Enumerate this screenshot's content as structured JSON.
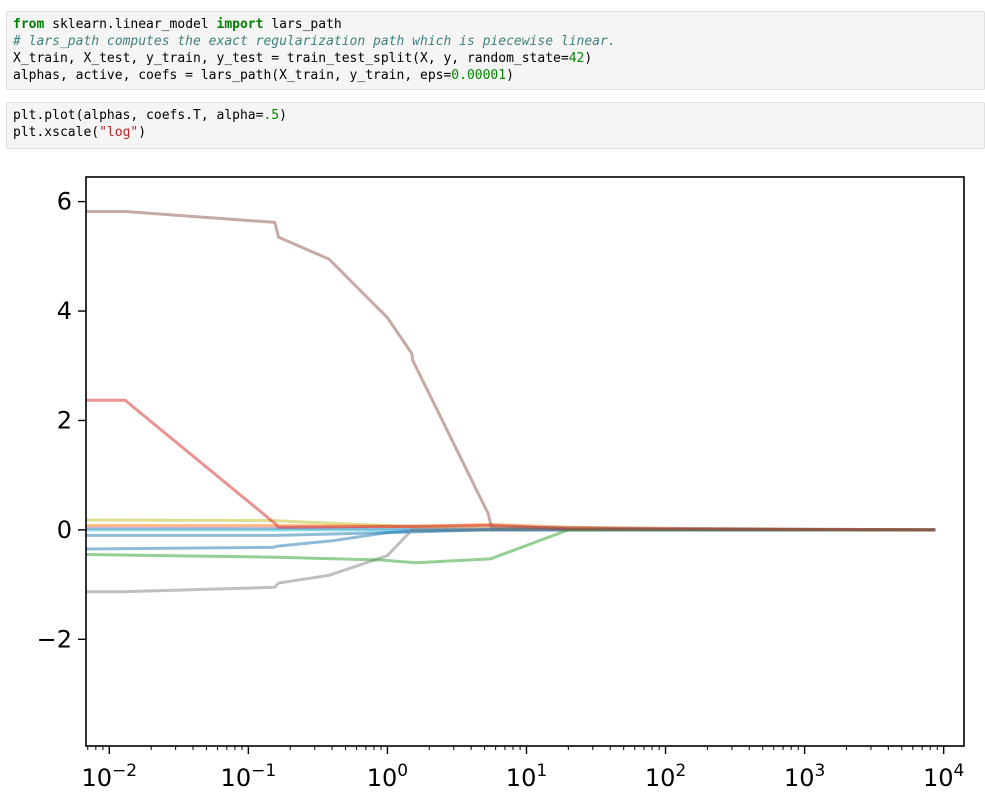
{
  "cells": [
    {
      "lines": [
        [
          {
            "t": "from",
            "c": "kw"
          },
          {
            "t": " sklearn.linear_model "
          },
          {
            "t": "import",
            "c": "kw"
          },
          {
            "t": " lars_path"
          }
        ],
        [
          {
            "t": "# lars_path computes the exact regularization path which is piecewise linear.",
            "c": "cm"
          }
        ],
        [
          {
            "t": "X_train, X_test, y_train, y_test = train_test_split(X, y, random_state="
          },
          {
            "t": "42",
            "c": "num"
          },
          {
            "t": ")"
          }
        ],
        [
          {
            "t": "alphas, active, coefs = lars_path(X_train, y_train, eps="
          },
          {
            "t": "0.00001",
            "c": "num"
          },
          {
            "t": ")"
          }
        ]
      ]
    },
    {
      "lines": [
        [
          {
            "t": "plt.plot(alphas, coefs.T, alpha="
          },
          {
            "t": ".5",
            "c": "num"
          },
          {
            "t": ")"
          }
        ],
        [
          {
            "t": "plt.xscale("
          },
          {
            "t": "\"log\"",
            "c": "str"
          },
          {
            "t": ")"
          }
        ]
      ]
    }
  ],
  "chart_data": {
    "type": "line",
    "xscale": "log",
    "xlim": [
      0.0068,
      14000
    ],
    "ylim": [
      -3.95,
      6.45
    ],
    "x_ticks": [
      {
        "value": 0.01,
        "base": "10",
        "exp": "−2"
      },
      {
        "value": 0.1,
        "base": "10",
        "exp": "−1"
      },
      {
        "value": 1,
        "base": "10",
        "exp": "0"
      },
      {
        "value": 10,
        "base": "10",
        "exp": "1"
      },
      {
        "value": 100,
        "base": "10",
        "exp": "2"
      },
      {
        "value": 1000,
        "base": "10",
        "exp": "3"
      },
      {
        "value": 10000,
        "base": "10",
        "exp": "4"
      }
    ],
    "y_ticks": [
      {
        "value": 6,
        "label": "6"
      },
      {
        "value": 4,
        "label": "4"
      },
      {
        "value": 2,
        "label": "2"
      },
      {
        "value": 0,
        "label": "0"
      },
      {
        "value": -2,
        "label": "−2"
      }
    ],
    "alpha": 0.5,
    "series": [
      {
        "color": "#bcbd22",
        "points": [
          [
            0.0068,
            0.18
          ],
          [
            0.15,
            0.17
          ],
          [
            0.4,
            0.12
          ],
          [
            1.5,
            0.06
          ],
          [
            8,
            0.02
          ],
          [
            30,
            0.01
          ],
          [
            8700,
            0
          ]
        ]
      },
      {
        "color": "#ff7f0e",
        "points": [
          [
            0.0068,
            0.08
          ],
          [
            0.16,
            0.08
          ],
          [
            1.5,
            0.06
          ],
          [
            5.5,
            0.1
          ],
          [
            20,
            0.05
          ],
          [
            100,
            0.02
          ],
          [
            8700,
            0
          ]
        ]
      },
      {
        "color": "#9467bd",
        "points": [
          [
            0.0068,
            0.03
          ],
          [
            0.16,
            0.03
          ],
          [
            1.5,
            0.02
          ],
          [
            10,
            0.01
          ],
          [
            8700,
            0
          ]
        ]
      },
      {
        "color": "#17becf",
        "points": [
          [
            0.0068,
            0.0
          ],
          [
            0.16,
            0.0
          ],
          [
            8700,
            0
          ]
        ]
      },
      {
        "color": "#1f77b4",
        "points": [
          [
            0.0068,
            -0.1
          ],
          [
            0.16,
            -0.1
          ],
          [
            1.0,
            -0.05
          ],
          [
            5,
            0
          ],
          [
            8700,
            0
          ]
        ]
      },
      {
        "color": "#1f77b4",
        "points": [
          [
            0.0068,
            -0.35
          ],
          [
            0.15,
            -0.32
          ],
          [
            0.16,
            -0.3
          ],
          [
            0.4,
            -0.2
          ],
          [
            1.0,
            -0.05
          ],
          [
            1.5,
            -0.02
          ],
          [
            5,
            0
          ],
          [
            8700,
            0
          ]
        ]
      },
      {
        "color": "#7f7f7f",
        "points": [
          [
            0.0068,
            -1.13
          ],
          [
            0.013,
            -1.13
          ],
          [
            0.155,
            -1.05
          ],
          [
            0.165,
            -0.97
          ],
          [
            0.38,
            -0.83
          ],
          [
            1.0,
            -0.47
          ],
          [
            1.5,
            0
          ],
          [
            8700,
            0
          ]
        ]
      },
      {
        "color": "#2ca02c",
        "points": [
          [
            0.0068,
            -0.45
          ],
          [
            0.16,
            -0.5
          ],
          [
            0.9,
            -0.55
          ],
          [
            1.6,
            -0.6
          ],
          [
            5.5,
            -0.53
          ],
          [
            20,
            0
          ],
          [
            8700,
            0
          ]
        ]
      },
      {
        "color": "#d62728",
        "points": [
          [
            0.0068,
            2.37
          ],
          [
            0.013,
            2.37
          ],
          [
            0.155,
            0.12
          ],
          [
            0.165,
            0.05
          ],
          [
            1.5,
            0.07
          ],
          [
            6,
            0.08
          ],
          [
            20,
            0.02
          ],
          [
            8700,
            0
          ]
        ]
      },
      {
        "color": "#8c564b",
        "points": [
          [
            0.0068,
            5.82
          ],
          [
            0.013,
            5.82
          ],
          [
            0.155,
            5.62
          ],
          [
            0.165,
            5.35
          ],
          [
            0.38,
            4.95
          ],
          [
            1.0,
            3.88
          ],
          [
            1.5,
            3.22
          ],
          [
            1.52,
            3.1
          ],
          [
            5.3,
            0.3
          ],
          [
            5.6,
            0.05
          ],
          [
            8700,
            0
          ]
        ]
      }
    ]
  }
}
